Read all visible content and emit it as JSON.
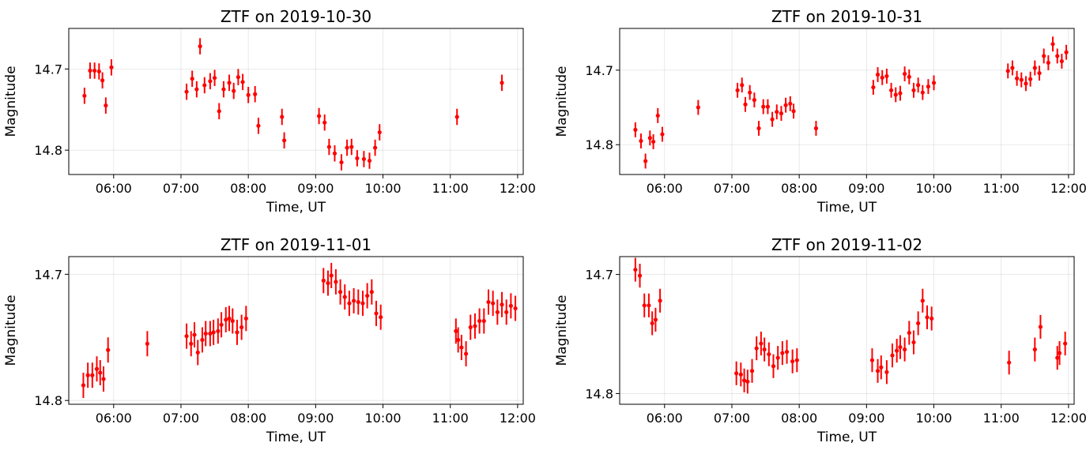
{
  "chart_data": [
    {
      "type": "scatter",
      "title": "ZTF on 2019-10-30",
      "xlabel": "Time, UT",
      "ylabel": "Magnitude",
      "y_inverted": true,
      "ylim": [
        14.83,
        14.65
      ],
      "xlim": [
        "05:20",
        "12:05"
      ],
      "x_ticks": [
        "06:00",
        "07:00",
        "08:00",
        "09:00",
        "10:00",
        "11:00",
        "12:00"
      ],
      "y_ticks": [
        14.7,
        14.8
      ],
      "y_tick_labels": [
        "14.7",
        "14.8"
      ],
      "grid": true,
      "marker_color": "#ff0000",
      "series": [
        {
          "x": [
            "05:34",
            "05:39",
            "05:43",
            "05:47",
            "05:50",
            "05:53",
            "05:58",
            "07:05",
            "07:10",
            "07:14",
            "07:17",
            "07:21",
            "07:26",
            "07:30",
            "07:34",
            "07:38",
            "07:43",
            "07:47",
            "07:51",
            "07:55",
            "08:00",
            "08:06",
            "08:09",
            "08:30",
            "08:32",
            "09:03",
            "09:08",
            "09:12",
            "09:17",
            "09:23",
            "09:28",
            "09:32",
            "09:37",
            "09:43",
            "09:48",
            "09:53",
            "09:57",
            "11:06",
            "11:46"
          ],
          "y": [
            14.733,
            14.702,
            14.702,
            14.703,
            14.714,
            14.745,
            14.698,
            14.728,
            14.712,
            14.725,
            14.672,
            14.72,
            14.715,
            14.711,
            14.752,
            14.725,
            14.717,
            14.727,
            14.71,
            14.716,
            14.732,
            14.731,
            14.77,
            14.759,
            14.788,
            14.758,
            14.766,
            14.796,
            14.804,
            14.815,
            14.797,
            14.796,
            14.81,
            14.811,
            14.813,
            14.797,
            14.778,
            14.759,
            14.717
          ],
          "yerr": [
            0.01,
            0.01,
            0.01,
            0.01,
            0.01,
            0.01,
            0.01,
            0.01,
            0.01,
            0.01,
            0.01,
            0.01,
            0.01,
            0.01,
            0.01,
            0.01,
            0.01,
            0.01,
            0.01,
            0.01,
            0.01,
            0.01,
            0.01,
            0.01,
            0.01,
            0.01,
            0.01,
            0.01,
            0.01,
            0.01,
            0.01,
            0.01,
            0.01,
            0.01,
            0.01,
            0.01,
            0.01,
            0.01,
            0.01
          ]
        }
      ]
    },
    {
      "type": "scatter",
      "title": "ZTF on 2019-10-31",
      "xlabel": "Time, UT",
      "ylabel": "Magnitude",
      "y_inverted": true,
      "ylim": [
        14.84,
        14.644
      ],
      "xlim": [
        "05:20",
        "12:05"
      ],
      "x_ticks": [
        "06:00",
        "07:00",
        "08:00",
        "09:00",
        "10:00",
        "11:00",
        "12:00"
      ],
      "y_ticks": [
        14.7,
        14.8
      ],
      "y_tick_labels": [
        "14.7",
        "14.8"
      ],
      "grid": true,
      "marker_color": "#ff0000",
      "series": [
        {
          "x": [
            "05:34",
            "05:39",
            "05:43",
            "05:47",
            "05:50",
            "05:54",
            "05:58",
            "06:30",
            "07:05",
            "07:09",
            "07:12",
            "07:16",
            "07:20",
            "07:24",
            "07:28",
            "07:32",
            "07:36",
            "07:40",
            "07:44",
            "07:48",
            "07:52",
            "07:55",
            "08:15",
            "09:06",
            "09:10",
            "09:14",
            "09:18",
            "09:22",
            "09:26",
            "09:30",
            "09:34",
            "09:38",
            "09:42",
            "09:46",
            "09:50",
            "09:55",
            "10:00",
            "11:06",
            "11:10",
            "11:14",
            "11:18",
            "11:22",
            "11:26",
            "11:30",
            "11:34",
            "11:38",
            "11:42",
            "11:46",
            "11:50",
            "11:54",
            "11:58"
          ],
          "y": [
            14.78,
            14.795,
            14.822,
            14.791,
            14.796,
            14.761,
            14.786,
            14.75,
            14.727,
            14.72,
            14.746,
            14.73,
            14.74,
            14.778,
            14.749,
            14.749,
            14.766,
            14.756,
            14.758,
            14.747,
            14.745,
            14.755,
            14.778,
            14.723,
            14.706,
            14.71,
            14.708,
            14.727,
            14.733,
            14.731,
            14.705,
            14.709,
            14.727,
            14.72,
            14.73,
            14.722,
            14.717,
            14.701,
            14.697,
            14.711,
            14.713,
            14.718,
            14.712,
            14.697,
            14.704,
            14.681,
            14.69,
            14.665,
            14.681,
            14.688,
            14.676
          ],
          "yerr": [
            0.01,
            0.01,
            0.01,
            0.01,
            0.01,
            0.01,
            0.01,
            0.01,
            0.01,
            0.01,
            0.01,
            0.01,
            0.01,
            0.01,
            0.01,
            0.01,
            0.01,
            0.01,
            0.01,
            0.01,
            0.01,
            0.01,
            0.01,
            0.01,
            0.01,
            0.01,
            0.01,
            0.01,
            0.01,
            0.01,
            0.01,
            0.01,
            0.01,
            0.01,
            0.01,
            0.01,
            0.01,
            0.01,
            0.01,
            0.01,
            0.01,
            0.01,
            0.01,
            0.01,
            0.01,
            0.01,
            0.01,
            0.01,
            0.01,
            0.01,
            0.01
          ]
        }
      ]
    },
    {
      "type": "scatter",
      "title": "ZTF on 2019-11-01",
      "xlabel": "Time, UT",
      "ylabel": "Magnitude",
      "y_inverted": true,
      "ylim": [
        14.803,
        14.686
      ],
      "xlim": [
        "05:20",
        "12:05"
      ],
      "x_ticks": [
        "06:00",
        "07:00",
        "08:00",
        "09:00",
        "10:00",
        "11:00",
        "12:00"
      ],
      "y_ticks": [
        14.7,
        14.8
      ],
      "y_tick_labels": [
        "14.7",
        "14.8"
      ],
      "grid": true,
      "marker_color": "#ff0000",
      "series": [
        {
          "x": [
            "05:33",
            "05:37",
            "05:41",
            "05:45",
            "05:48",
            "05:51",
            "05:55",
            "06:30",
            "07:05",
            "07:09",
            "07:12",
            "07:15",
            "07:19",
            "07:22",
            "07:26",
            "07:29",
            "07:33",
            "07:36",
            "07:40",
            "07:43",
            "07:46",
            "07:50",
            "07:54",
            "07:58",
            "09:07",
            "09:11",
            "09:14",
            "09:18",
            "09:22",
            "09:26",
            "09:30",
            "09:34",
            "09:38",
            "09:42",
            "09:46",
            "09:50",
            "09:54",
            "09:58",
            "11:05",
            "11:07",
            "11:10",
            "11:14",
            "11:18",
            "11:22",
            "11:26",
            "11:30",
            "11:34",
            "11:38",
            "11:42",
            "11:46",
            "11:50",
            "11:54",
            "11:58"
          ],
          "y": [
            14.788,
            14.78,
            14.78,
            14.775,
            14.778,
            14.783,
            14.76,
            14.755,
            14.749,
            14.755,
            14.748,
            14.762,
            14.752,
            14.747,
            14.747,
            14.746,
            14.745,
            14.74,
            14.736,
            14.735,
            14.737,
            14.746,
            14.742,
            14.735,
            14.705,
            14.707,
            14.701,
            14.706,
            14.714,
            14.718,
            14.723,
            14.721,
            14.722,
            14.723,
            14.717,
            14.714,
            14.731,
            14.734,
            14.745,
            14.752,
            14.758,
            14.763,
            14.742,
            14.741,
            14.737,
            14.737,
            14.722,
            14.723,
            14.73,
            14.724,
            14.73,
            14.725,
            14.727
          ],
          "yerr": [
            0.01,
            0.01,
            0.01,
            0.01,
            0.01,
            0.01,
            0.01,
            0.01,
            0.01,
            0.01,
            0.01,
            0.01,
            0.01,
            0.01,
            0.01,
            0.01,
            0.01,
            0.01,
            0.01,
            0.01,
            0.01,
            0.01,
            0.01,
            0.01,
            0.01,
            0.01,
            0.01,
            0.01,
            0.01,
            0.01,
            0.01,
            0.01,
            0.01,
            0.01,
            0.01,
            0.01,
            0.01,
            0.01,
            0.01,
            0.01,
            0.01,
            0.01,
            0.01,
            0.01,
            0.01,
            0.01,
            0.01,
            0.01,
            0.01,
            0.01,
            0.01,
            0.01,
            0.01
          ]
        }
      ]
    },
    {
      "type": "scatter",
      "title": "ZTF on 2019-11-02",
      "xlabel": "Time, UT",
      "ylabel": "Magnitude",
      "y_inverted": true,
      "ylim": [
        14.809,
        14.685
      ],
      "xlim": [
        "05:20",
        "12:05"
      ],
      "x_ticks": [
        "06:00",
        "07:00",
        "08:00",
        "09:00",
        "10:00",
        "11:00",
        "12:00"
      ],
      "y_ticks": [
        14.7,
        14.8
      ],
      "y_tick_labels": [
        "14.7",
        "14.8"
      ],
      "grid": true,
      "marker_color": "#ff0000",
      "series": [
        {
          "x": [
            "05:34",
            "05:38",
            "05:42",
            "05:46",
            "05:49",
            "05:52",
            "05:56",
            "07:04",
            "07:08",
            "07:11",
            "07:14",
            "07:18",
            "07:22",
            "07:26",
            "07:29",
            "07:33",
            "07:37",
            "07:41",
            "07:45",
            "07:49",
            "07:54",
            "07:58",
            "09:05",
            "09:10",
            "09:13",
            "09:18",
            "09:23",
            "09:27",
            "09:30",
            "09:34",
            "09:38",
            "09:42",
            "09:46",
            "09:50",
            "09:54",
            "09:58",
            "11:07",
            "11:30",
            "11:35",
            "11:50",
            "11:52",
            "11:57"
          ],
          "y": [
            14.696,
            14.701,
            14.726,
            14.726,
            14.741,
            14.738,
            14.722,
            14.783,
            14.784,
            14.789,
            14.79,
            14.781,
            14.762,
            14.758,
            14.763,
            14.767,
            14.777,
            14.77,
            14.766,
            14.765,
            14.773,
            14.772,
            14.772,
            14.781,
            14.778,
            14.782,
            14.768,
            14.764,
            14.761,
            14.763,
            14.749,
            14.757,
            14.741,
            14.722,
            14.736,
            14.737,
            14.774,
            14.763,
            14.744,
            14.77,
            14.766,
            14.758
          ],
          "yerr": [
            0.01,
            0.01,
            0.01,
            0.01,
            0.01,
            0.01,
            0.01,
            0.01,
            0.01,
            0.01,
            0.01,
            0.01,
            0.01,
            0.01,
            0.01,
            0.01,
            0.01,
            0.01,
            0.01,
            0.01,
            0.01,
            0.01,
            0.01,
            0.01,
            0.01,
            0.01,
            0.01,
            0.01,
            0.01,
            0.01,
            0.01,
            0.01,
            0.01,
            0.01,
            0.01,
            0.01,
            0.01,
            0.01,
            0.01,
            0.01,
            0.01,
            0.01
          ]
        }
      ]
    }
  ]
}
